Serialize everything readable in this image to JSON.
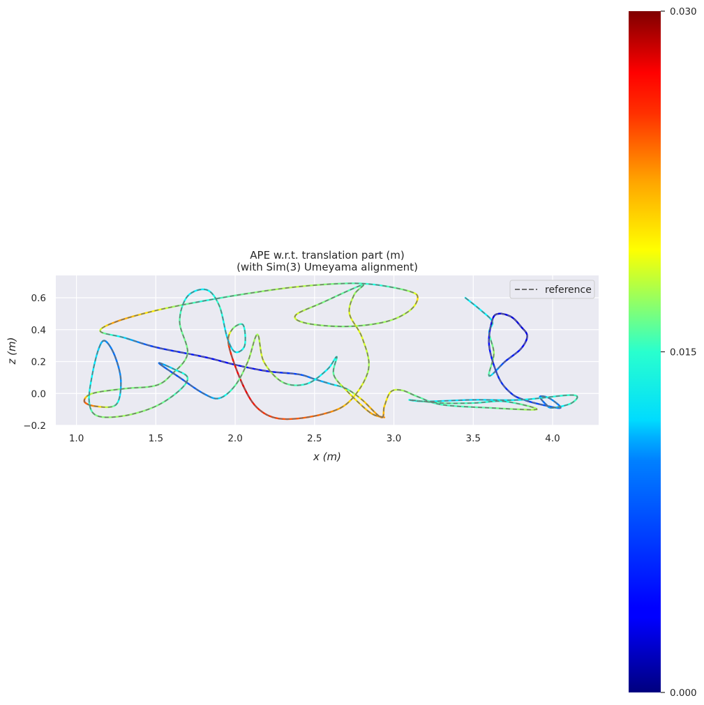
{
  "chart_data": {
    "type": "line",
    "title": "APE w.r.t. translation part (m)",
    "subtitle": "(with Sim(3) Umeyama alignment)",
    "xlabel": "x (m)",
    "ylabel": "z (m)",
    "xlim": [
      0.87,
      4.29
    ],
    "ylim": [
      -0.2,
      0.74
    ],
    "xticks": [
      1.0,
      1.5,
      2.0,
      2.5,
      3.0,
      3.5,
      4.0
    ],
    "xtick_labels": [
      "1.0",
      "1.5",
      "2.0",
      "2.5",
      "3.0",
      "3.5",
      "4.0"
    ],
    "yticks": [
      -0.2,
      0.0,
      0.2,
      0.4,
      0.6
    ],
    "ytick_labels": [
      "−0.2",
      "0.0",
      "0.2",
      "0.4",
      "0.6"
    ],
    "grid": true,
    "legend": {
      "position": "top-right",
      "entries": [
        "reference"
      ]
    },
    "reference_style": {
      "color": "#6e6e6e",
      "dash": "dashed"
    },
    "colorbar": {
      "colormap": "jet",
      "min": 0.0,
      "max": 0.03,
      "ticks": [
        0.0,
        0.015,
        0.03
      ],
      "tick_labels": [
        "0.000",
        "0.015",
        "0.030"
      ]
    },
    "series": [
      {
        "name": "reference",
        "trajectory": [
          [
            3.45,
            0.6,
            0.011
          ],
          [
            3.55,
            0.52,
            0.011
          ],
          [
            3.62,
            0.45,
            0.011
          ],
          [
            3.6,
            0.38,
            0.012
          ],
          [
            3.63,
            0.25,
            0.016
          ],
          [
            3.6,
            0.11,
            0.013
          ],
          [
            3.7,
            0.2,
            0.005
          ],
          [
            3.8,
            0.28,
            0.004
          ],
          [
            3.84,
            0.36,
            0.003
          ],
          [
            3.8,
            0.42,
            0.003
          ],
          [
            3.74,
            0.48,
            0.003
          ],
          [
            3.66,
            0.5,
            0.003
          ],
          [
            3.62,
            0.46,
            0.003
          ],
          [
            3.6,
            0.3,
            0.004
          ],
          [
            3.66,
            0.1,
            0.005
          ],
          [
            3.74,
            0.0,
            0.005
          ],
          [
            3.82,
            -0.04,
            0.005
          ],
          [
            3.93,
            -0.07,
            0.006
          ],
          [
            4.05,
            -0.09,
            0.007
          ],
          [
            3.98,
            -0.03,
            0.008
          ],
          [
            3.92,
            -0.02,
            0.007
          ],
          [
            3.96,
            -0.07,
            0.007
          ],
          [
            4.0,
            -0.09,
            0.009
          ],
          [
            4.12,
            -0.06,
            0.013
          ],
          [
            4.13,
            -0.01,
            0.013
          ],
          [
            3.8,
            -0.04,
            0.011
          ],
          [
            3.5,
            -0.04,
            0.01
          ],
          [
            3.2,
            -0.05,
            0.011
          ],
          [
            3.1,
            -0.04,
            0.012
          ],
          [
            3.3,
            -0.06,
            0.014
          ],
          [
            3.5,
            -0.06,
            0.013
          ],
          [
            3.7,
            -0.05,
            0.012
          ],
          [
            3.9,
            -0.1,
            0.017
          ],
          [
            3.6,
            -0.09,
            0.014
          ],
          [
            3.3,
            -0.07,
            0.013
          ],
          [
            3.15,
            -0.02,
            0.014
          ],
          [
            3.05,
            0.02,
            0.016
          ],
          [
            2.98,
            0.01,
            0.018
          ],
          [
            2.94,
            -0.08,
            0.02
          ],
          [
            2.92,
            -0.15,
            0.022
          ],
          [
            2.8,
            -0.04,
            0.02
          ],
          [
            2.7,
            0.03,
            0.013
          ],
          [
            2.6,
            0.06,
            0.01
          ],
          [
            2.5,
            0.09,
            0.008
          ],
          [
            2.4,
            0.12,
            0.006
          ],
          [
            2.2,
            0.14,
            0.004
          ],
          [
            2.0,
            0.18,
            0.004
          ],
          [
            1.8,
            0.23,
            0.004
          ],
          [
            1.5,
            0.29,
            0.005
          ],
          [
            1.3,
            0.35,
            0.01
          ],
          [
            1.15,
            0.39,
            0.016
          ],
          [
            1.25,
            0.45,
            0.022
          ],
          [
            1.5,
            0.52,
            0.019
          ],
          [
            1.8,
            0.58,
            0.012
          ],
          [
            2.1,
            0.63,
            0.015
          ],
          [
            2.4,
            0.67,
            0.017
          ],
          [
            2.7,
            0.69,
            0.014
          ],
          [
            2.9,
            0.68,
            0.012
          ],
          [
            3.1,
            0.64,
            0.016
          ],
          [
            3.15,
            0.6,
            0.02
          ],
          [
            3.1,
            0.52,
            0.017
          ],
          [
            2.95,
            0.45,
            0.016
          ],
          [
            2.7,
            0.42,
            0.015
          ],
          [
            2.45,
            0.44,
            0.016
          ],
          [
            2.38,
            0.49,
            0.018
          ],
          [
            2.55,
            0.57,
            0.015
          ],
          [
            2.8,
            0.68,
            0.013
          ],
          [
            2.75,
            0.62,
            0.016
          ],
          [
            2.72,
            0.5,
            0.018
          ],
          [
            2.8,
            0.35,
            0.018
          ],
          [
            2.84,
            0.15,
            0.016
          ],
          [
            2.72,
            -0.05,
            0.02
          ],
          [
            2.55,
            -0.13,
            0.023
          ],
          [
            2.3,
            -0.16,
            0.024
          ],
          [
            2.15,
            -0.1,
            0.025
          ],
          [
            2.05,
            0.05,
            0.027
          ],
          [
            1.96,
            0.3,
            0.025
          ],
          [
            1.98,
            0.4,
            0.016
          ],
          [
            2.05,
            0.43,
            0.012
          ],
          [
            2.06,
            0.3,
            0.012
          ],
          [
            2.0,
            0.26,
            0.011
          ],
          [
            1.95,
            0.35,
            0.01
          ],
          [
            1.9,
            0.55,
            0.013
          ],
          [
            1.82,
            0.65,
            0.011
          ],
          [
            1.7,
            0.61,
            0.011
          ],
          [
            1.65,
            0.45,
            0.014
          ],
          [
            1.7,
            0.25,
            0.015
          ],
          [
            1.6,
            0.12,
            0.015
          ],
          [
            1.5,
            0.05,
            0.015
          ],
          [
            1.3,
            0.03,
            0.015
          ],
          [
            1.1,
            0.0,
            0.016
          ],
          [
            1.05,
            -0.05,
            0.024
          ],
          [
            1.12,
            -0.08,
            0.022
          ],
          [
            1.25,
            -0.07,
            0.013
          ],
          [
            1.28,
            0.08,
            0.008
          ],
          [
            1.24,
            0.24,
            0.007
          ],
          [
            1.18,
            0.33,
            0.008
          ],
          [
            1.14,
            0.28,
            0.01
          ],
          [
            1.1,
            0.12,
            0.011
          ],
          [
            1.08,
            -0.05,
            0.012
          ],
          [
            1.13,
            -0.14,
            0.015
          ],
          [
            1.3,
            -0.14,
            0.016
          ],
          [
            1.5,
            -0.08,
            0.015
          ],
          [
            1.65,
            0.02,
            0.013
          ],
          [
            1.7,
            0.1,
            0.013
          ],
          [
            1.62,
            0.15,
            0.011
          ],
          [
            1.52,
            0.19,
            0.007
          ],
          [
            1.65,
            0.1,
            0.006
          ],
          [
            1.8,
            0.0,
            0.007
          ],
          [
            1.9,
            -0.03,
            0.01
          ],
          [
            2.0,
            0.05,
            0.014
          ],
          [
            2.08,
            0.2,
            0.016
          ],
          [
            2.14,
            0.37,
            0.016
          ],
          [
            2.18,
            0.2,
            0.018
          ],
          [
            2.3,
            0.07,
            0.015
          ],
          [
            2.45,
            0.06,
            0.012
          ],
          [
            2.58,
            0.15,
            0.011
          ],
          [
            2.64,
            0.23,
            0.012
          ],
          [
            2.62,
            0.12,
            0.014
          ],
          [
            2.7,
            0.02,
            0.018
          ],
          [
            2.85,
            -0.12,
            0.021
          ],
          [
            2.94,
            -0.15,
            0.022
          ]
        ]
      }
    ]
  }
}
